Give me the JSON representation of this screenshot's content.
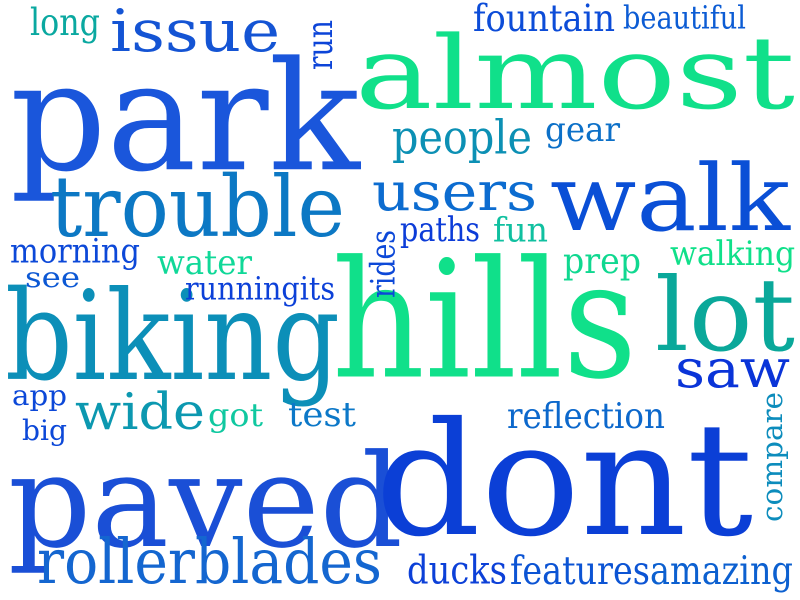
{
  "words": [
    {
      "text": "park",
      "color": "#1a56db"
    },
    {
      "text": "almost",
      "color": "#10e08a"
    },
    {
      "text": "hills",
      "color": "#10e08a"
    },
    {
      "text": "paved",
      "color": "#1a4fd6"
    },
    {
      "text": "dont",
      "color": "#0b3fd6"
    },
    {
      "text": "biking",
      "color": "#0c8fb8"
    },
    {
      "text": "walk",
      "color": "#0a4fd6"
    },
    {
      "text": "trouble",
      "color": "#0c78c4"
    },
    {
      "text": "lot",
      "color": "#0aa89a"
    },
    {
      "text": "rollerblades",
      "color": "#1466d0"
    },
    {
      "text": "issue",
      "color": "#1454d4"
    },
    {
      "text": "users",
      "color": "#0c6cd0"
    },
    {
      "text": "saw",
      "color": "#0a34d8"
    },
    {
      "text": "wide",
      "color": "#0c98b0"
    },
    {
      "text": "people",
      "color": "#0c90b4"
    },
    {
      "text": "long",
      "color": "#0aa8a0"
    },
    {
      "text": "fountain",
      "color": "#0c4cd8"
    },
    {
      "text": "beautiful",
      "color": "#0c5cd4"
    },
    {
      "text": "run",
      "color": "#0c44d8"
    },
    {
      "text": "gear",
      "color": "#0c70c8"
    },
    {
      "text": "rides",
      "color": "#0c48d8"
    },
    {
      "text": "paths",
      "color": "#0c3cd8"
    },
    {
      "text": "fun",
      "color": "#10c0a0"
    },
    {
      "text": "morning",
      "color": "#0c48d8"
    },
    {
      "text": "water",
      "color": "#10d898"
    },
    {
      "text": "prep",
      "color": "#10d890"
    },
    {
      "text": "walking",
      "color": "#10e08a"
    },
    {
      "text": "see",
      "color": "#0c58d4"
    },
    {
      "text": "runningits",
      "color": "#0c40d8"
    },
    {
      "text": "app",
      "color": "#0c48d8"
    },
    {
      "text": "big",
      "color": "#0c48d8"
    },
    {
      "text": "got",
      "color": "#10c8a0"
    },
    {
      "text": "test",
      "color": "#0c78c8"
    },
    {
      "text": "reflection",
      "color": "#0c68cc"
    },
    {
      "text": "compare",
      "color": "#0c8cbc"
    },
    {
      "text": "ducks",
      "color": "#0c40d8"
    },
    {
      "text": "features",
      "color": "#0c54d4"
    },
    {
      "text": "amazing",
      "color": "#0c60d0"
    }
  ]
}
